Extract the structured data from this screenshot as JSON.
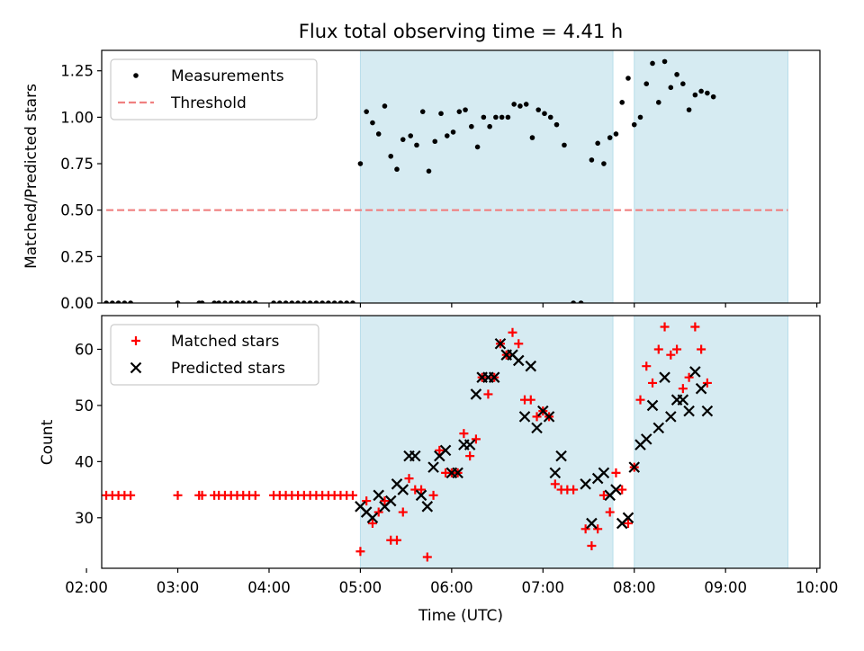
{
  "title": "Flux total observing time = 4.41 h",
  "chart_data": [
    {
      "type": "scatter",
      "panel": "top",
      "ylabel": "Matched/Predicted stars",
      "ylim": [
        0,
        1.36
      ],
      "yticks": [
        0.0,
        0.25,
        0.5,
        0.75,
        1.0,
        1.25
      ],
      "ytick_labels": [
        "0.00",
        "0.25",
        "0.50",
        "0.75",
        "1.00",
        "1.25"
      ],
      "xlim": [
        "02:10",
        "10:02"
      ],
      "grid": false,
      "legend_position": "upper-left",
      "legend": [
        {
          "label": "Measurements",
          "marker": "dot",
          "color": "#000000"
        },
        {
          "label": "Threshold",
          "marker": "dashed-line",
          "color": "#f08080"
        }
      ],
      "shaded_intervals": [
        [
          "05:00",
          "07:46"
        ],
        [
          "08:00",
          "09:41"
        ]
      ],
      "threshold": {
        "y": 0.5,
        "x_start": "02:13",
        "x_end": "09:41",
        "color": "#f08080"
      },
      "series": [
        {
          "name": "Measurements",
          "color": "#000000",
          "points": [
            [
              "02:13",
              0
            ],
            [
              "02:17",
              0
            ],
            [
              "02:21",
              0
            ],
            [
              "02:25",
              0
            ],
            [
              "02:29",
              0
            ],
            [
              "03:00",
              0
            ],
            [
              "03:14",
              0
            ],
            [
              "03:16",
              0
            ],
            [
              "03:24",
              0
            ],
            [
              "03:27",
              0
            ],
            [
              "03:31",
              0
            ],
            [
              "03:35",
              0
            ],
            [
              "03:39",
              0
            ],
            [
              "03:43",
              0
            ],
            [
              "03:47",
              0
            ],
            [
              "03:51",
              0
            ],
            [
              "04:03",
              0
            ],
            [
              "04:07",
              0
            ],
            [
              "04:11",
              0
            ],
            [
              "04:15",
              0
            ],
            [
              "04:19",
              0
            ],
            [
              "04:23",
              0
            ],
            [
              "04:27",
              0
            ],
            [
              "04:31",
              0
            ],
            [
              "04:35",
              0
            ],
            [
              "04:39",
              0
            ],
            [
              "04:43",
              0
            ],
            [
              "04:47",
              0
            ],
            [
              "04:51",
              0
            ],
            [
              "04:55",
              0
            ],
            [
              "05:00",
              0.75
            ],
            [
              "05:04",
              1.03
            ],
            [
              "05:08",
              0.97
            ],
            [
              "05:12",
              0.91
            ],
            [
              "05:16",
              1.06
            ],
            [
              "05:20",
              0.79
            ],
            [
              "05:24",
              0.72
            ],
            [
              "05:28",
              0.88
            ],
            [
              "05:33",
              0.9
            ],
            [
              "05:37",
              0.85
            ],
            [
              "05:41",
              1.03
            ],
            [
              "05:45",
              0.71
            ],
            [
              "05:49",
              0.87
            ],
            [
              "05:53",
              1.02
            ],
            [
              "05:57",
              0.9
            ],
            [
              "06:01",
              0.92
            ],
            [
              "06:05",
              1.03
            ],
            [
              "06:09",
              1.04
            ],
            [
              "06:13",
              0.95
            ],
            [
              "06:17",
              0.84
            ],
            [
              "06:21",
              1.0
            ],
            [
              "06:25",
              0.95
            ],
            [
              "06:29",
              1.0
            ],
            [
              "06:33",
              1.0
            ],
            [
              "06:37",
              1.0
            ],
            [
              "06:41",
              1.07
            ],
            [
              "06:45",
              1.06
            ],
            [
              "06:49",
              1.07
            ],
            [
              "06:53",
              0.89
            ],
            [
              "06:57",
              1.04
            ],
            [
              "07:01",
              1.02
            ],
            [
              "07:05",
              1.0
            ],
            [
              "07:09",
              0.96
            ],
            [
              "07:14",
              0.85
            ],
            [
              "07:20",
              0
            ],
            [
              "07:25",
              0
            ],
            [
              "07:32",
              0.77
            ],
            [
              "07:36",
              0.86
            ],
            [
              "07:40",
              0.75
            ],
            [
              "07:44",
              0.89
            ],
            [
              "07:48",
              0.91
            ],
            [
              "07:52",
              1.08
            ],
            [
              "07:56",
              1.21
            ],
            [
              "08:00",
              0.96
            ],
            [
              "08:04",
              1.0
            ],
            [
              "08:08",
              1.18
            ],
            [
              "08:12",
              1.29
            ],
            [
              "08:16",
              1.08
            ],
            [
              "08:20",
              1.3
            ],
            [
              "08:24",
              1.16
            ],
            [
              "08:28",
              1.23
            ],
            [
              "08:32",
              1.18
            ],
            [
              "08:36",
              1.04
            ],
            [
              "08:40",
              1.12
            ],
            [
              "08:44",
              1.14
            ],
            [
              "08:48",
              1.13
            ],
            [
              "08:52",
              1.11
            ]
          ]
        }
      ]
    },
    {
      "type": "scatter",
      "panel": "bottom",
      "xlabel": "Time (UTC)",
      "ylabel": "Count",
      "ylim": [
        21,
        66
      ],
      "yticks": [
        30,
        40,
        50,
        60
      ],
      "ytick_labels": [
        "30",
        "40",
        "50",
        "60"
      ],
      "xlim": [
        "02:10",
        "10:02"
      ],
      "xticks": [
        "02:00",
        "03:00",
        "04:00",
        "05:00",
        "06:00",
        "07:00",
        "08:00",
        "09:00",
        "10:00"
      ],
      "xtick_labels": [
        "02:00",
        "03:00",
        "04:00",
        "05:00",
        "06:00",
        "07:00",
        "08:00",
        "09:00",
        "10:00"
      ],
      "grid": false,
      "legend_position": "upper-left",
      "legend": [
        {
          "label": "Matched stars",
          "marker": "plus",
          "color": "#ff0000"
        },
        {
          "label": "Predicted stars",
          "marker": "x",
          "color": "#000000"
        }
      ],
      "shaded_intervals": [
        [
          "05:00",
          "07:46"
        ],
        [
          "08:00",
          "09:41"
        ]
      ],
      "series": [
        {
          "name": "Matched stars",
          "color": "#ff0000",
          "marker": "plus",
          "points": [
            [
              "02:13",
              34
            ],
            [
              "02:17",
              34
            ],
            [
              "02:21",
              34
            ],
            [
              "02:25",
              34
            ],
            [
              "02:29",
              34
            ],
            [
              "03:00",
              34
            ],
            [
              "03:14",
              34
            ],
            [
              "03:16",
              34
            ],
            [
              "03:24",
              34
            ],
            [
              "03:27",
              34
            ],
            [
              "03:31",
              34
            ],
            [
              "03:35",
              34
            ],
            [
              "03:39",
              34
            ],
            [
              "03:43",
              34
            ],
            [
              "03:47",
              34
            ],
            [
              "03:51",
              34
            ],
            [
              "04:03",
              34
            ],
            [
              "04:07",
              34
            ],
            [
              "04:11",
              34
            ],
            [
              "04:15",
              34
            ],
            [
              "04:19",
              34
            ],
            [
              "04:23",
              34
            ],
            [
              "04:27",
              34
            ],
            [
              "04:31",
              34
            ],
            [
              "04:35",
              34
            ],
            [
              "04:39",
              34
            ],
            [
              "04:43",
              34
            ],
            [
              "04:47",
              34
            ],
            [
              "04:51",
              34
            ],
            [
              "04:55",
              34
            ],
            [
              "05:00",
              24
            ],
            [
              "05:04",
              33
            ],
            [
              "05:08",
              29
            ],
            [
              "05:12",
              31
            ],
            [
              "05:16",
              33
            ],
            [
              "05:20",
              26
            ],
            [
              "05:24",
              26
            ],
            [
              "05:28",
              31
            ],
            [
              "05:32",
              37
            ],
            [
              "05:36",
              35
            ],
            [
              "05:40",
              35
            ],
            [
              "05:44",
              23
            ],
            [
              "05:48",
              34
            ],
            [
              "05:52",
              42
            ],
            [
              "05:56",
              38
            ],
            [
              "06:00",
              38
            ],
            [
              "06:04",
              38
            ],
            [
              "06:08",
              45
            ],
            [
              "06:12",
              41
            ],
            [
              "06:16",
              44
            ],
            [
              "06:20",
              55
            ],
            [
              "06:24",
              52
            ],
            [
              "06:28",
              55
            ],
            [
              "06:32",
              61
            ],
            [
              "06:36",
              59
            ],
            [
              "06:40",
              63
            ],
            [
              "06:44",
              61
            ],
            [
              "06:48",
              51
            ],
            [
              "06:52",
              51
            ],
            [
              "06:56",
              48
            ],
            [
              "07:00",
              49
            ],
            [
              "07:04",
              48
            ],
            [
              "07:08",
              36
            ],
            [
              "07:12",
              35
            ],
            [
              "07:16",
              35
            ],
            [
              "07:20",
              35
            ],
            [
              "07:28",
              28
            ],
            [
              "07:32",
              25
            ],
            [
              "07:36",
              28
            ],
            [
              "07:40",
              34
            ],
            [
              "07:44",
              31
            ],
            [
              "07:48",
              38
            ],
            [
              "07:52",
              35
            ],
            [
              "07:56",
              29
            ],
            [
              "08:00",
              39
            ],
            [
              "08:04",
              51
            ],
            [
              "08:08",
              57
            ],
            [
              "08:12",
              54
            ],
            [
              "08:16",
              60
            ],
            [
              "08:20",
              64
            ],
            [
              "08:24",
              59
            ],
            [
              "08:28",
              60
            ],
            [
              "08:32",
              53
            ],
            [
              "08:36",
              55
            ],
            [
              "08:40",
              64
            ],
            [
              "08:44",
              60
            ],
            [
              "08:48",
              54
            ]
          ]
        },
        {
          "name": "Predicted stars",
          "color": "#000000",
          "marker": "x",
          "points": [
            [
              "05:00",
              32
            ],
            [
              "05:04",
              31
            ],
            [
              "05:08",
              30
            ],
            [
              "05:12",
              34
            ],
            [
              "05:16",
              32
            ],
            [
              "05:20",
              33
            ],
            [
              "05:24",
              36
            ],
            [
              "05:28",
              35
            ],
            [
              "05:32",
              41
            ],
            [
              "05:36",
              41
            ],
            [
              "05:40",
              34
            ],
            [
              "05:44",
              32
            ],
            [
              "05:48",
              39
            ],
            [
              "05:52",
              41
            ],
            [
              "05:56",
              42
            ],
            [
              "06:00",
              38
            ],
            [
              "06:04",
              38
            ],
            [
              "06:08",
              43
            ],
            [
              "06:12",
              43
            ],
            [
              "06:16",
              52
            ],
            [
              "06:20",
              55
            ],
            [
              "06:24",
              55
            ],
            [
              "06:28",
              55
            ],
            [
              "06:32",
              61
            ],
            [
              "06:36",
              59
            ],
            [
              "06:40",
              59
            ],
            [
              "06:44",
              58
            ],
            [
              "06:48",
              48
            ],
            [
              "06:52",
              57
            ],
            [
              "06:56",
              46
            ],
            [
              "07:00",
              49
            ],
            [
              "07:04",
              48
            ],
            [
              "07:08",
              38
            ],
            [
              "07:12",
              41
            ],
            [
              "07:28",
              36
            ],
            [
              "07:32",
              29
            ],
            [
              "07:36",
              37
            ],
            [
              "07:40",
              38
            ],
            [
              "07:44",
              34
            ],
            [
              "07:48",
              35
            ],
            [
              "07:52",
              29
            ],
            [
              "07:56",
              30
            ],
            [
              "08:00",
              39
            ],
            [
              "08:04",
              43
            ],
            [
              "08:08",
              44
            ],
            [
              "08:12",
              50
            ],
            [
              "08:16",
              46
            ],
            [
              "08:20",
              55
            ],
            [
              "08:24",
              48
            ],
            [
              "08:28",
              51
            ],
            [
              "08:32",
              51
            ],
            [
              "08:36",
              49
            ],
            [
              "08:40",
              56
            ],
            [
              "08:44",
              53
            ],
            [
              "08:48",
              49
            ]
          ]
        }
      ]
    }
  ]
}
